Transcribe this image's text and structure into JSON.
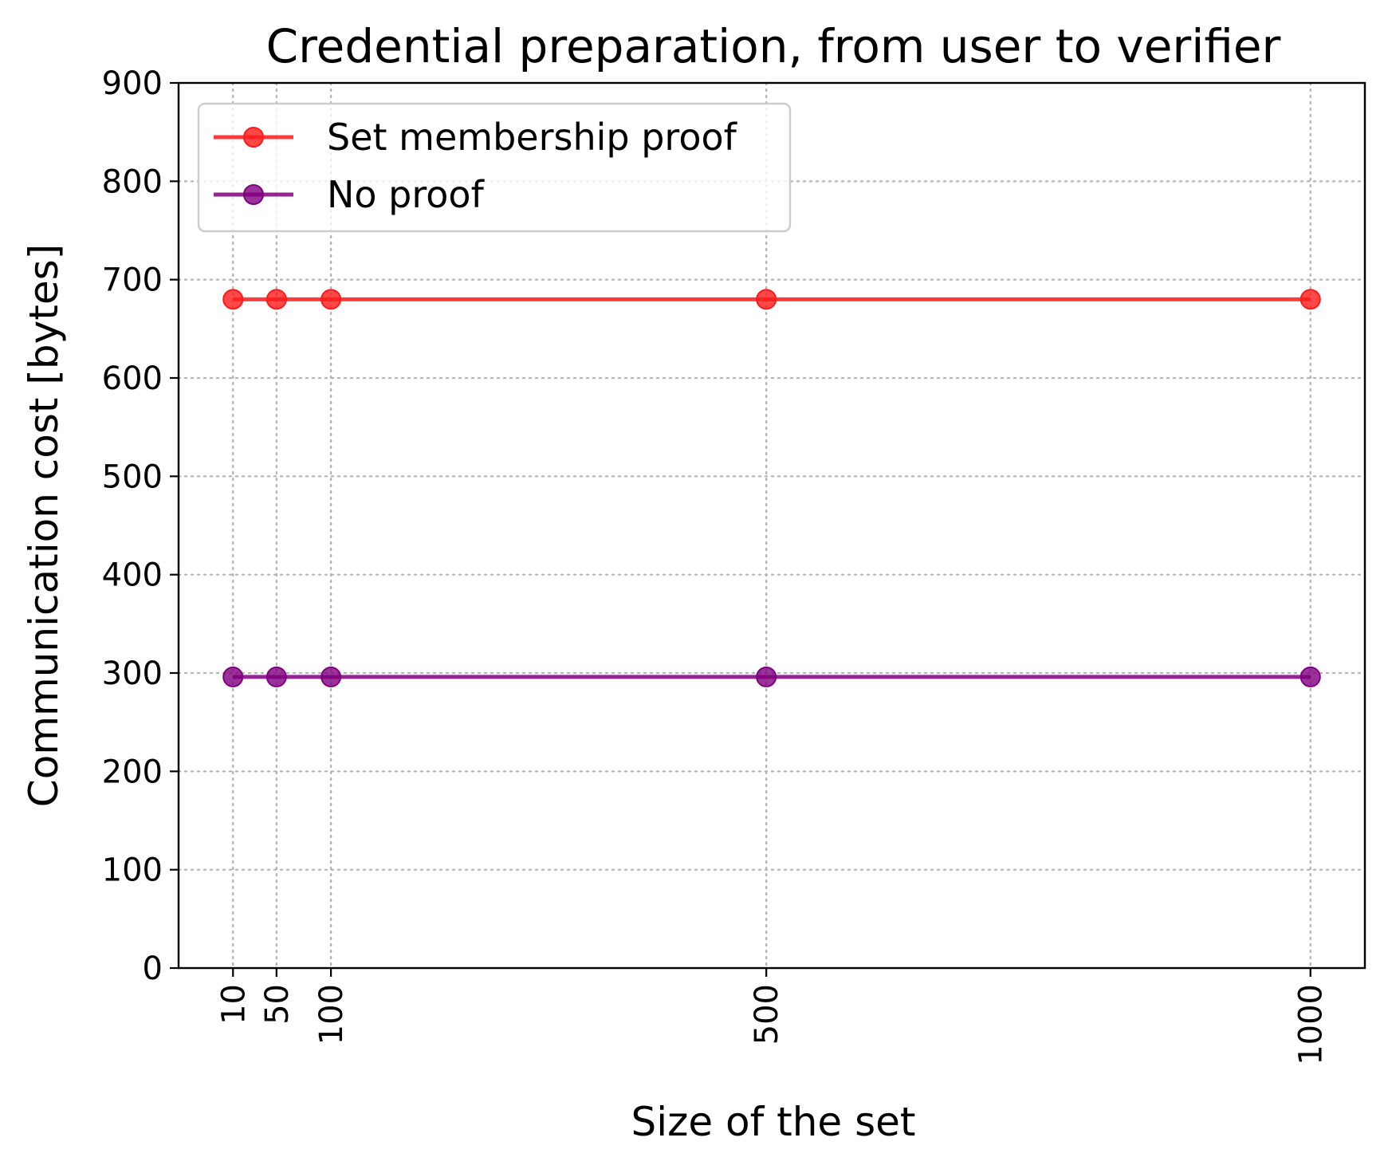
{
  "chart_data": {
    "type": "line",
    "title": "Credential preparation, from user to verifier",
    "xlabel": "Size of the set",
    "ylabel": "Communication cost [bytes]",
    "x": [
      10,
      50,
      100,
      500,
      1000
    ],
    "x_tick_labels": [
      "10",
      "50",
      "100",
      "500",
      "1000"
    ],
    "xlim": [
      -40,
      1050
    ],
    "y_ticks": [
      0,
      100,
      200,
      300,
      400,
      500,
      600,
      700,
      800,
      900
    ],
    "ylim": [
      0,
      900
    ],
    "grid": true,
    "legend_position": "top-left",
    "series": [
      {
        "name": "Set membership proof",
        "color": "#ff1a1a",
        "values": [
          680,
          680,
          680,
          680,
          680
        ]
      },
      {
        "name": "No proof",
        "color": "#800080",
        "values": [
          296,
          296,
          296,
          296,
          296
        ]
      }
    ]
  }
}
